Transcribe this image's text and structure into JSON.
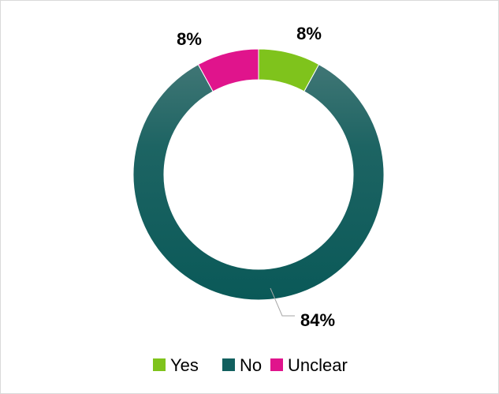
{
  "chart_data": {
    "type": "donut",
    "title": "",
    "categories": [
      "Yes",
      "No",
      "Unclear"
    ],
    "values": [
      8,
      84,
      8
    ],
    "data_labels": [
      "8%",
      "84%",
      "8%"
    ],
    "colors": [
      "#7fc31c",
      "#12605f",
      "#e0148c"
    ],
    "legend_position": "bottom",
    "grid": false
  }
}
